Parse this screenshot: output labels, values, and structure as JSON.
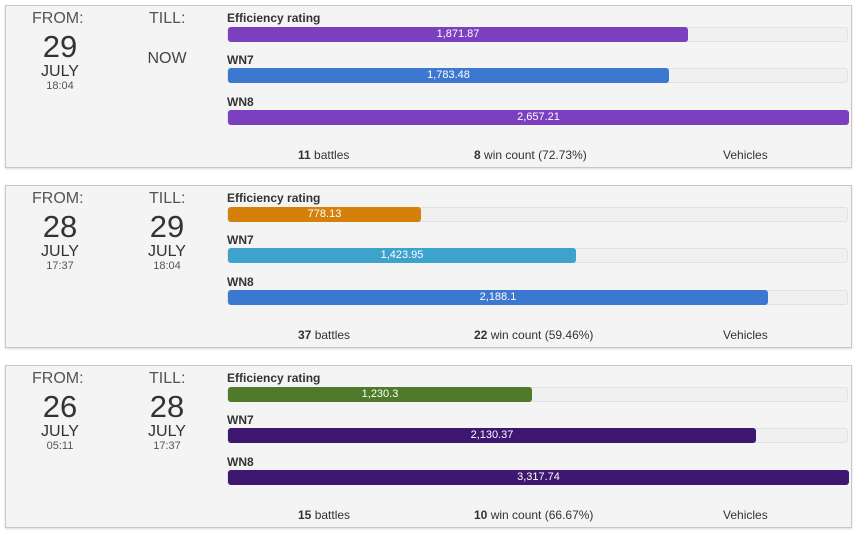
{
  "labels": {
    "from": "FROM:",
    "till": "TILL:",
    "efficiency": "Efficiency rating",
    "wn7": "WN7",
    "wn8": "WN8",
    "battles_suffix": " battles",
    "win_count_suffix": " win count",
    "vehicles": "Vehicles"
  },
  "sessions": [
    {
      "from": {
        "day": "29",
        "month": "JULY",
        "time": "18:04"
      },
      "till_now": "NOW",
      "efficiency": {
        "value": "1,871.87",
        "fraction": 0.74,
        "color": "#7b3fbf"
      },
      "wn7": {
        "value": "1,783.48",
        "fraction": 0.71,
        "color": "#3d78d0"
      },
      "wn8": {
        "value": "2,657.21",
        "fraction": 1.0,
        "color": "#7b3fbf"
      },
      "battles": "11",
      "wins": "8",
      "win_pct": "(72.73%)"
    },
    {
      "from": {
        "day": "28",
        "month": "JULY",
        "time": "17:37"
      },
      "till": {
        "day": "29",
        "month": "JULY",
        "time": "18:04"
      },
      "efficiency": {
        "value": "778.13",
        "fraction": 0.31,
        "color": "#d4800a"
      },
      "wn7": {
        "value": "1,423.95",
        "fraction": 0.56,
        "color": "#3da2cc"
      },
      "wn8": {
        "value": "2,188.1",
        "fraction": 0.87,
        "color": "#3d78d0"
      },
      "battles": "37",
      "wins": "22",
      "win_pct": "(59.46%)"
    },
    {
      "from": {
        "day": "26",
        "month": "JULY",
        "time": "05:11"
      },
      "till": {
        "day": "28",
        "month": "JULY",
        "time": "17:37"
      },
      "efficiency": {
        "value": "1,230.3",
        "fraction": 0.49,
        "color": "#4e7a2a"
      },
      "wn7": {
        "value": "2,130.37",
        "fraction": 0.85,
        "color": "#3e1870"
      },
      "wn8": {
        "value": "3,317.74",
        "fraction": 1.0,
        "color": "#3e1870"
      },
      "battles": "15",
      "wins": "10",
      "win_pct": "(66.67%)"
    }
  ]
}
